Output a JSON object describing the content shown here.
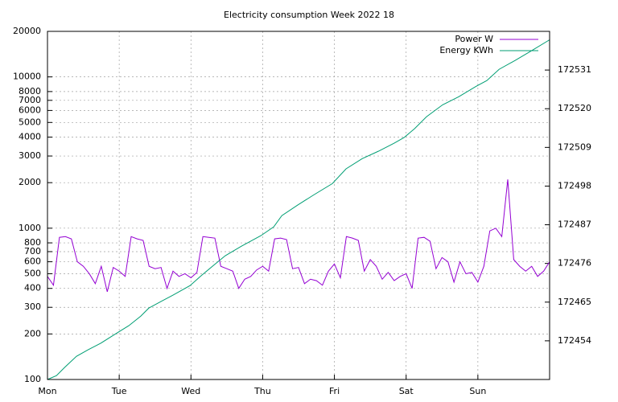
{
  "chart_data": {
    "type": "line",
    "title": "Electricity consumption Week 2022 18",
    "ylog": true,
    "grid": true,
    "legend": "top-right",
    "xlim": [
      0,
      168
    ],
    "xticks": [
      {
        "value": 0,
        "label": "Mon"
      },
      {
        "value": 24,
        "label": "Tue"
      },
      {
        "value": 48,
        "label": "Wed"
      },
      {
        "value": 72,
        "label": "Thu"
      },
      {
        "value": 96,
        "label": "Fri"
      },
      {
        "value": 120,
        "label": "Sat"
      },
      {
        "value": 144,
        "label": "Sun"
      }
    ],
    "ylim": [
      100,
      20000
    ],
    "yticks": [
      100,
      200,
      300,
      400,
      500,
      600,
      700,
      800,
      1000,
      2000,
      3000,
      4000,
      5000,
      6000,
      7000,
      8000,
      10000,
      20000
    ],
    "y2lim": [
      172443,
      172542
    ],
    "y2ticks": [
      172454,
      172465,
      172476,
      172487,
      172498,
      172509,
      172520,
      172531
    ],
    "series": [
      {
        "name": "Power W",
        "color": "#9400d3",
        "x": [
          0,
          2,
          4,
          6,
          8,
          10,
          12,
          14,
          16,
          18,
          20,
          22,
          24,
          26,
          28,
          30,
          32,
          34,
          36,
          38,
          40,
          42,
          44,
          46,
          48,
          50,
          52,
          54,
          56,
          58,
          60,
          62,
          64,
          66,
          68,
          70,
          72,
          74,
          76,
          78,
          80,
          82,
          84,
          86,
          88,
          90,
          92,
          94,
          96,
          98,
          100,
          102,
          104,
          106,
          108,
          110,
          112,
          114,
          116,
          118,
          120,
          122,
          124,
          126,
          128,
          130,
          132,
          134,
          136,
          138,
          140,
          142,
          144,
          146,
          148,
          150,
          152,
          154,
          156,
          158,
          160,
          162,
          164,
          166,
          168
        ],
        "values": [
          480,
          420,
          870,
          880,
          850,
          600,
          560,
          500,
          430,
          560,
          380,
          550,
          520,
          480,
          880,
          850,
          830,
          560,
          540,
          550,
          400,
          520,
          480,
          500,
          470,
          510,
          880,
          870,
          860,
          560,
          540,
          520,
          400,
          460,
          480,
          530,
          560,
          520,
          850,
          860,
          840,
          540,
          550,
          430,
          460,
          450,
          420,
          520,
          580,
          470,
          880,
          860,
          830,
          520,
          620,
          560,
          460,
          510,
          450,
          480,
          500,
          400,
          860,
          870,
          820,
          540,
          640,
          600,
          440,
          600,
          500,
          510,
          440,
          560,
          960,
          1000,
          880,
          2100,
          620,
          560,
          520,
          560,
          480,
          520,
          600
        ]
      },
      {
        "name": "Energy KWh",
        "color": "#009e73",
        "axis": "y2",
        "x": [
          0,
          3,
          5.7,
          9.7,
          13.7,
          17.8,
          23.4,
          27.2,
          31.2,
          33.9,
          38,
          42,
          47.7,
          51.4,
          55.5,
          59.5,
          64.9,
          71.4,
          75.7,
          78.4,
          83.7,
          89.1,
          95.3,
          99.9,
          105.3,
          110.7,
          116,
          119.3,
          122.8,
          126.8,
          132.2,
          137.6,
          143.5,
          147,
          151.1,
          156.4,
          161.8,
          168
        ],
        "values": [
          172443.0,
          172444.1,
          172446.4,
          172449.6,
          172451.5,
          172453.3,
          172456.3,
          172458.3,
          172461.0,
          172463.3,
          172465.2,
          172467.0,
          172469.7,
          172472.5,
          172475.4,
          172478.2,
          172480.9,
          172483.9,
          172486.4,
          172489.6,
          172492.6,
          172495.5,
          172498.7,
          172502.9,
          172505.8,
          172507.9,
          172510.2,
          172511.8,
          172514.3,
          172517.7,
          172521.1,
          172523.4,
          172526.4,
          172528.0,
          172531.2,
          172533.7,
          172536.4,
          172539.6
        ]
      }
    ]
  }
}
